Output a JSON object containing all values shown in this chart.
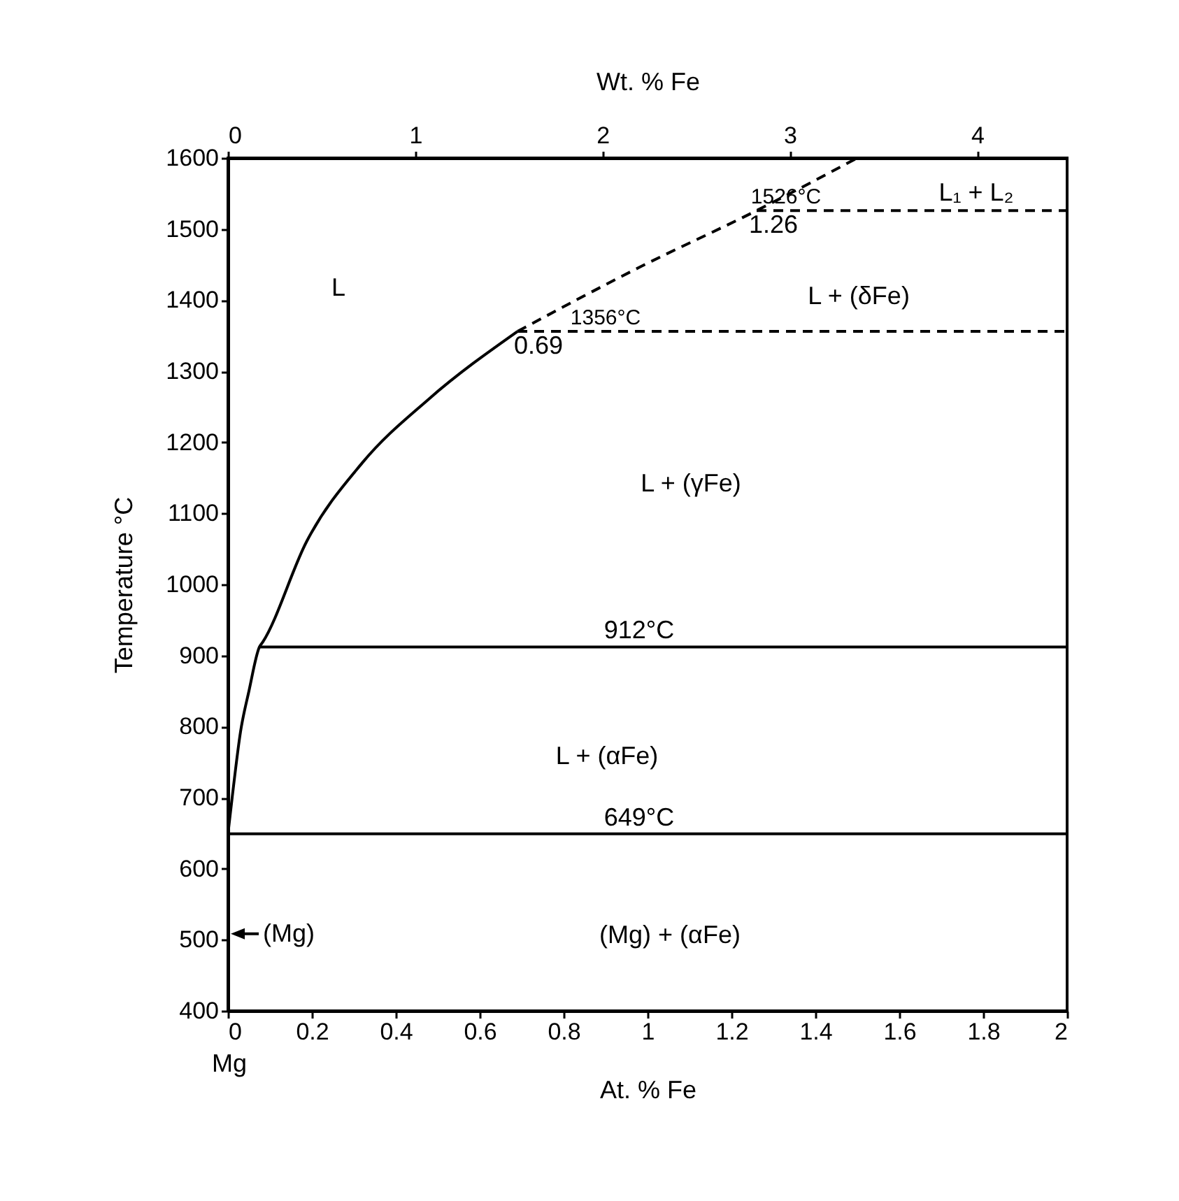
{
  "chart_data": {
    "type": "line",
    "xlabel": "At. % Fe",
    "x2label": "Wt. % Fe",
    "ylabel": "Temperature °C",
    "xlim": [
      0,
      2
    ],
    "xticks": [
      0,
      0.2,
      0.4,
      0.6,
      0.8,
      1,
      1.2,
      1.4,
      1.6,
      1.8,
      2
    ],
    "x2lim": [
      0,
      4.48
    ],
    "x2ticks": [
      0,
      1,
      2,
      3,
      4
    ],
    "ylim": [
      400,
      1600
    ],
    "yticks": [
      400,
      500,
      600,
      700,
      800,
      900,
      1000,
      1100,
      1200,
      1300,
      1400,
      1500,
      1600
    ],
    "grid": false,
    "series": [
      {
        "color": "#000000",
        "line_style": "solid",
        "x": [
          0,
          0.01,
          0.03,
          0.05,
          0.075,
          0.083,
          0.188,
          0.32,
          0.479,
          0.69
        ],
        "values": [
          649,
          700,
          793,
          850,
          912,
          919,
          1061,
          1171,
          1261,
          1356
        ]
      },
      {
        "color": "#000000",
        "line_style": "dashed",
        "x": [
          0.69,
          0.98,
          1.26,
          1.5
        ],
        "values": [
          1356,
          1446,
          1526,
          1600
        ]
      },
      {
        "color": "#000000",
        "line_style": "solid",
        "x": [
          0,
          2
        ],
        "values": [
          649,
          649
        ]
      },
      {
        "color": "#000000",
        "line_style": "solid",
        "x": [
          0.075,
          2
        ],
        "values": [
          912,
          912
        ]
      },
      {
        "color": "#000000",
        "line_style": "dashed",
        "x": [
          0.69,
          2
        ],
        "values": [
          1356,
          1356
        ]
      },
      {
        "color": "#000000",
        "line_style": "dashed",
        "x": [
          1.26,
          2
        ],
        "values": [
          1526,
          1526
        ]
      }
    ],
    "annotations": [
      "(Mg)",
      "L",
      "L + (δFe)",
      "L₁ + L₂",
      "L + (γFe)",
      "L + (αFe)",
      "(Mg) + (αFe)",
      "Mg",
      {
        "text": "1526°C",
        "x": 1.33,
        "y": 1526
      },
      {
        "text": "1.26",
        "x": 1.3,
        "y": 1526
      },
      {
        "text": "1356°C",
        "x": 0.9,
        "y": 1356
      },
      {
        "text": "0.69",
        "x": 0.74,
        "y": 1356
      },
      {
        "text": "912°C",
        "x": 0.98,
        "y": 912
      },
      {
        "text": "649°C",
        "x": 0.98,
        "y": 649
      }
    ]
  }
}
